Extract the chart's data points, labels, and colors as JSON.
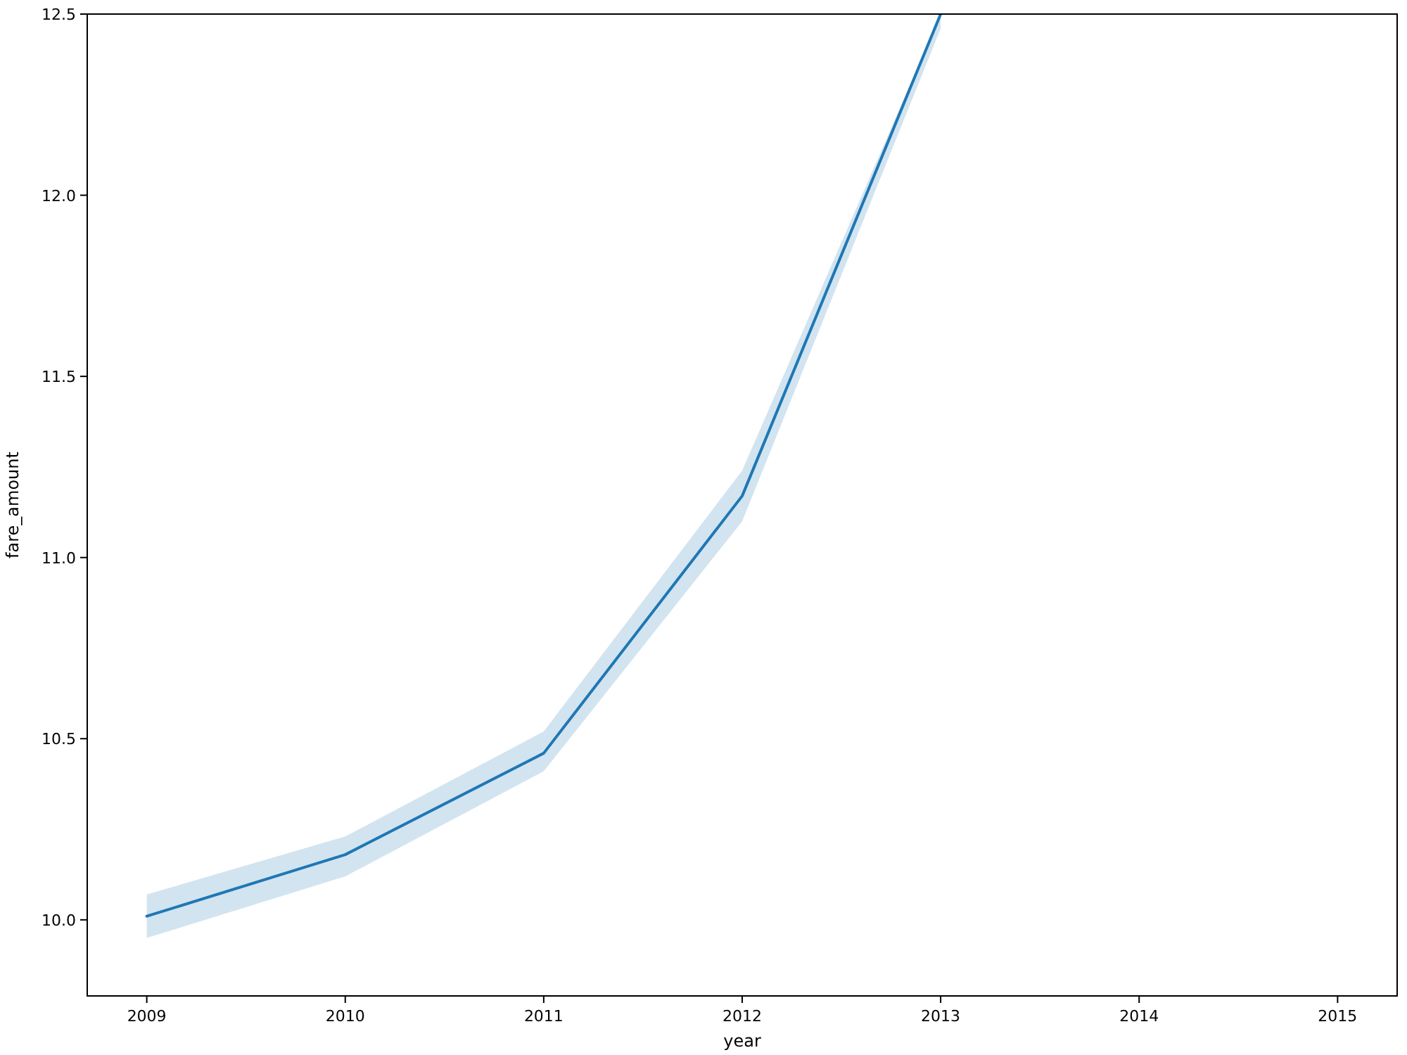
{
  "chart_data": {
    "type": "line",
    "xlabel": "year",
    "ylabel": "fare_amount",
    "x": [
      2009,
      2010,
      2011,
      2012,
      2013
    ],
    "series": [
      {
        "color": "#1f77b4",
        "values": [
          10.01,
          10.18,
          10.46,
          11.17,
          12.5
        ],
        "lower": [
          9.95,
          10.12,
          10.41,
          11.1,
          12.46
        ],
        "upper": [
          10.07,
          10.23,
          10.52,
          11.24,
          12.5
        ]
      }
    ],
    "xlim": [
      2008.7,
      2015.3
    ],
    "xticks": [
      2009,
      2010,
      2011,
      2012,
      2013,
      2014,
      2015
    ],
    "ylim": [
      9.79,
      12.5
    ],
    "yticks": [
      {
        "value": 10,
        "label": "10.0"
      },
      10.5,
      {
        "value": 11,
        "label": "11.0"
      },
      11.5,
      {
        "value": 12,
        "label": "12.0"
      },
      12.5
    ],
    "grid": false,
    "marker": "none",
    "line_style": "solid"
  }
}
